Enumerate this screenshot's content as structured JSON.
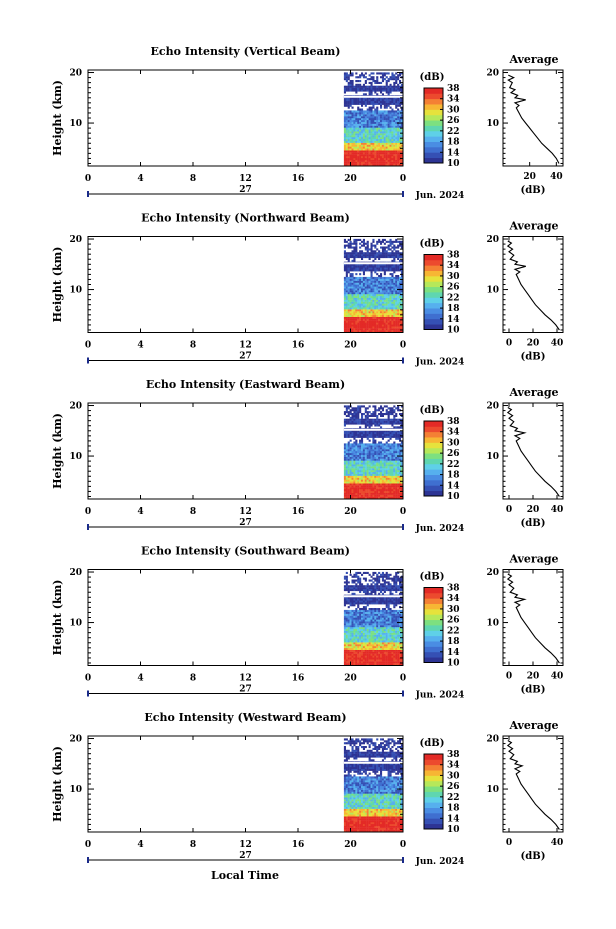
{
  "page": {
    "xlabel": "Local Time"
  },
  "colors": [
    "#2d3494",
    "#3550b4",
    "#3f6fd0",
    "#4a8de3",
    "#56b0ee",
    "#5fd0e8",
    "#5fd6b0",
    "#7de080",
    "#b6e85a",
    "#e6e23c",
    "#f7b634",
    "#f48034",
    "#ec4a2e",
    "#e32a26"
  ],
  "chart_data": [
    {
      "type": "heatmap",
      "title": "Echo Intensity (Vertical Beam)",
      "ylabel": "Height (km)",
      "x_ticks": [
        "0",
        "4",
        "8",
        "12",
        "16",
        "20",
        "0"
      ],
      "y_ticks": [
        "10",
        "20"
      ],
      "xlim": [
        0,
        24
      ],
      "ylim": [
        1.5,
        20.5
      ],
      "date_labels": {
        "day": "27",
        "month": "Jun. 2024"
      },
      "colorbar": {
        "unit": "(dB)",
        "ticks": [
          "10",
          "14",
          "18",
          "22",
          "26",
          "30",
          "34",
          "38"
        ],
        "range": [
          10,
          38
        ]
      },
      "data_start_hour": 19.5,
      "avg": {
        "title": "Average",
        "xlabel": "(dB)",
        "x_ticks": [
          "20",
          "40"
        ],
        "y_ticks": [
          "10",
          "20"
        ],
        "xlim": [
          0,
          45
        ],
        "profile": [
          [
            42,
            2
          ],
          [
            40,
            3
          ],
          [
            37,
            4
          ],
          [
            33,
            5
          ],
          [
            29,
            6
          ],
          [
            26,
            7
          ],
          [
            23,
            8
          ],
          [
            20,
            9
          ],
          [
            17,
            10
          ],
          [
            14,
            11
          ],
          [
            12,
            12
          ],
          [
            10,
            13
          ],
          [
            12,
            13.5
          ],
          [
            9,
            14
          ],
          [
            17,
            14.6
          ],
          [
            9,
            15
          ],
          [
            11,
            15.5
          ],
          [
            6,
            16
          ],
          [
            9,
            16.6
          ],
          [
            5,
            17
          ],
          [
            7,
            18
          ],
          [
            4,
            18.5
          ],
          [
            8,
            19
          ],
          [
            4,
            19.5
          ]
        ]
      }
    },
    {
      "type": "heatmap",
      "title": "Echo Intensity (Northward Beam)",
      "ylabel": "Height (km)",
      "x_ticks": [
        "0",
        "4",
        "8",
        "12",
        "16",
        "20",
        "0"
      ],
      "y_ticks": [
        "10",
        "20"
      ],
      "xlim": [
        0,
        24
      ],
      "ylim": [
        1.5,
        20.5
      ],
      "date_labels": {
        "day": "27",
        "month": "Jun. 2024"
      },
      "colorbar": {
        "unit": "(dB)",
        "ticks": [
          "10",
          "14",
          "18",
          "22",
          "26",
          "30",
          "34",
          "38"
        ],
        "range": [
          10,
          38
        ]
      },
      "data_start_hour": 19.5,
      "avg": {
        "title": "Average",
        "xlabel": "(dB)",
        "x_ticks": [
          "0",
          "20",
          "40"
        ],
        "y_ticks": [
          "10",
          "20"
        ],
        "xlim": [
          -5,
          45
        ],
        "profile": [
          [
            42,
            2
          ],
          [
            39,
            3
          ],
          [
            35,
            4
          ],
          [
            30,
            5
          ],
          [
            26,
            6
          ],
          [
            22,
            7
          ],
          [
            19,
            8
          ],
          [
            16,
            9
          ],
          [
            13,
            10
          ],
          [
            10,
            11
          ],
          [
            8,
            12
          ],
          [
            6,
            13
          ],
          [
            9,
            13.5
          ],
          [
            5,
            14
          ],
          [
            14,
            14.6
          ],
          [
            5,
            15
          ],
          [
            7,
            15.5
          ],
          [
            1,
            16
          ],
          [
            4,
            16.8
          ],
          [
            0,
            17.5
          ],
          [
            3,
            18
          ],
          [
            -1,
            18.6
          ],
          [
            2,
            19.2
          ],
          [
            -1,
            19.6
          ]
        ]
      }
    },
    {
      "type": "heatmap",
      "title": "Echo Intensity (Eastward Beam)",
      "ylabel": "Height (km)",
      "x_ticks": [
        "0",
        "4",
        "8",
        "12",
        "16",
        "20",
        "0"
      ],
      "y_ticks": [
        "10",
        "20"
      ],
      "xlim": [
        0,
        24
      ],
      "ylim": [
        1.5,
        20.5
      ],
      "date_labels": {
        "day": "27",
        "month": "Jun. 2024"
      },
      "colorbar": {
        "unit": "(dB)",
        "ticks": [
          "10",
          "14",
          "18",
          "22",
          "26",
          "30",
          "34",
          "38"
        ],
        "range": [
          10,
          38
        ]
      },
      "data_start_hour": 19.5,
      "avg": {
        "title": "Average",
        "xlabel": "(dB)",
        "x_ticks": [
          "0",
          "20",
          "40"
        ],
        "y_ticks": [
          "10",
          "20"
        ],
        "xlim": [
          -5,
          45
        ],
        "profile": [
          [
            42,
            2
          ],
          [
            39,
            3
          ],
          [
            35,
            4
          ],
          [
            30,
            5
          ],
          [
            26,
            6
          ],
          [
            22,
            7
          ],
          [
            19,
            8
          ],
          [
            16,
            9
          ],
          [
            13,
            10
          ],
          [
            10,
            11
          ],
          [
            8,
            12
          ],
          [
            6,
            13
          ],
          [
            9,
            13.5
          ],
          [
            5,
            14
          ],
          [
            13,
            14.6
          ],
          [
            5,
            15
          ],
          [
            7,
            15.5
          ],
          [
            1,
            16
          ],
          [
            4,
            16.8
          ],
          [
            0,
            17.5
          ],
          [
            3,
            18
          ],
          [
            -1,
            18.6
          ],
          [
            2,
            19.2
          ],
          [
            -1,
            19.6
          ]
        ]
      }
    },
    {
      "type": "heatmap",
      "title": "Echo Intensity (Southward Beam)",
      "ylabel": "Height (km)",
      "x_ticks": [
        "0",
        "4",
        "8",
        "12",
        "16",
        "20",
        "0"
      ],
      "y_ticks": [
        "10",
        "20"
      ],
      "xlim": [
        0,
        24
      ],
      "ylim": [
        1.5,
        20.5
      ],
      "date_labels": {
        "day": "27",
        "month": "Jun. 2024"
      },
      "colorbar": {
        "unit": "(dB)",
        "ticks": [
          "10",
          "14",
          "18",
          "22",
          "26",
          "30",
          "34",
          "38"
        ],
        "range": [
          10,
          38
        ]
      },
      "data_start_hour": 19.5,
      "avg": {
        "title": "Average",
        "xlabel": "(dB)",
        "x_ticks": [
          "0",
          "20",
          "40"
        ],
        "y_ticks": [
          "10",
          "20"
        ],
        "xlim": [
          -5,
          45
        ],
        "profile": [
          [
            42,
            2
          ],
          [
            39,
            3
          ],
          [
            35,
            4
          ],
          [
            30,
            5
          ],
          [
            26,
            6
          ],
          [
            22,
            7
          ],
          [
            19,
            8
          ],
          [
            16,
            9
          ],
          [
            13,
            10
          ],
          [
            10,
            11
          ],
          [
            8,
            12
          ],
          [
            6,
            13
          ],
          [
            9,
            13.5
          ],
          [
            5,
            14
          ],
          [
            13,
            14.6
          ],
          [
            5,
            15
          ],
          [
            7,
            15.5
          ],
          [
            1,
            16
          ],
          [
            4,
            16.8
          ],
          [
            0,
            17.5
          ],
          [
            3,
            18
          ],
          [
            -1,
            18.6
          ],
          [
            2,
            19.2
          ],
          [
            -1,
            19.6
          ]
        ]
      }
    },
    {
      "type": "heatmap",
      "title": "Echo Intensity (Westward Beam)",
      "ylabel": "Height (km)",
      "x_ticks": [
        "0",
        "4",
        "8",
        "12",
        "16",
        "20",
        "0"
      ],
      "y_ticks": [
        "10",
        "20"
      ],
      "xlim": [
        0,
        24
      ],
      "ylim": [
        1.5,
        20.5
      ],
      "date_labels": {
        "day": "27",
        "month": "Jun. 2024"
      },
      "colorbar": {
        "unit": "(dB)",
        "ticks": [
          "10",
          "14",
          "18",
          "22",
          "26",
          "30",
          "34",
          "38"
        ],
        "range": [
          10,
          38
        ]
      },
      "data_start_hour": 19.5,
      "avg": {
        "title": "Average",
        "xlabel": "(dB)",
        "x_ticks": [
          "0",
          "40"
        ],
        "y_ticks": [
          "10",
          "20"
        ],
        "xlim": [
          -5,
          45
        ],
        "profile": [
          [
            42,
            2
          ],
          [
            39,
            3
          ],
          [
            35,
            4
          ],
          [
            30,
            5
          ],
          [
            26,
            6
          ],
          [
            22,
            7
          ],
          [
            19,
            8
          ],
          [
            16,
            9
          ],
          [
            13,
            10
          ],
          [
            10,
            11
          ],
          [
            8,
            12
          ],
          [
            6,
            13
          ],
          [
            9,
            13.5
          ],
          [
            5,
            14
          ],
          [
            11,
            14.6
          ],
          [
            5,
            15
          ],
          [
            7,
            15.5
          ],
          [
            1,
            16
          ],
          [
            4,
            16.8
          ],
          [
            0,
            17.5
          ],
          [
            3,
            18
          ],
          [
            -1,
            18.6
          ],
          [
            2,
            19.2
          ],
          [
            -1,
            19.6
          ]
        ]
      }
    }
  ]
}
